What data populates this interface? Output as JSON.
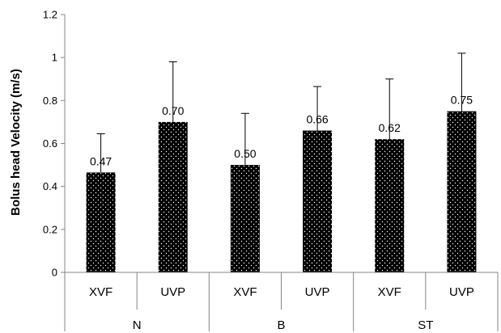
{
  "chart_data": {
    "type": "bar",
    "title": "",
    "xlabel": "",
    "ylabel": "Bolus head Velocity (m/s)",
    "ylim": [
      0,
      1.2
    ],
    "yticks": [
      "0",
      "0.2",
      "0.4",
      "0.6",
      "0.8",
      "1",
      "1.2"
    ],
    "grid": false,
    "legend": "none",
    "bar_fill": "black with white dot pattern",
    "categories": [
      "XVF",
      "UVP",
      "XVF",
      "UVP",
      "XVF",
      "UVP"
    ],
    "groups": [
      {
        "label": "N",
        "span": [
          0,
          1
        ]
      },
      {
        "label": "B",
        "span": [
          2,
          3
        ]
      },
      {
        "label": "ST",
        "span": [
          4,
          5
        ]
      }
    ],
    "values": [
      0.465,
      0.7,
      0.5,
      0.66,
      0.62,
      0.75
    ],
    "data_labels": [
      "0.47",
      "0.70",
      "0.50",
      "0.66",
      "0.62",
      "0.75"
    ],
    "error_upper": [
      0.645,
      0.98,
      0.74,
      0.865,
      0.9,
      1.02
    ],
    "colors": {
      "bar": "#000000",
      "dot": "#ffffff",
      "axis": "#868686",
      "text": "#000000"
    }
  }
}
